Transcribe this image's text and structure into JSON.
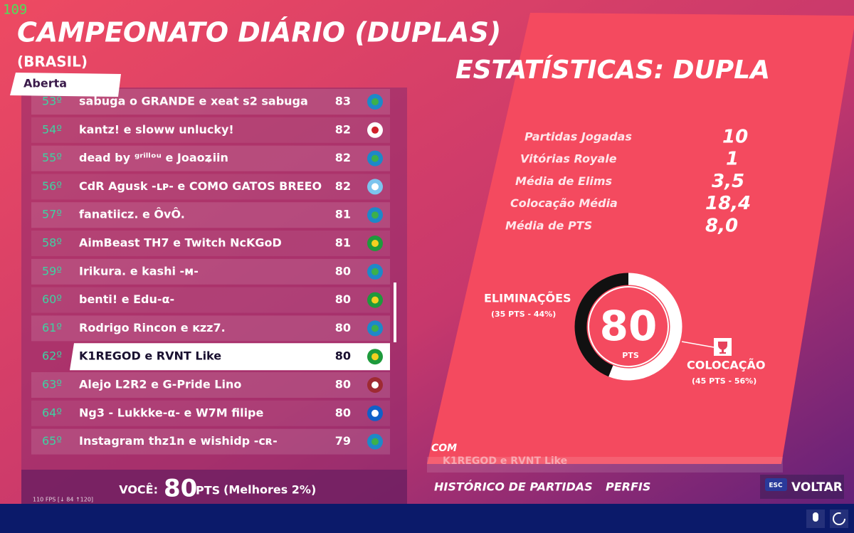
{
  "fps_counter": "109",
  "header": {
    "title": "CAMPEONATO DIÁRIO (DUPLAS)",
    "subtitle": "(BRASIL)",
    "tag": "Aberta"
  },
  "leaderboard": {
    "rows": [
      {
        "rank": "53º",
        "name": "sabuga o GRANDE e xeat s2 sabuga",
        "points": 83
      },
      {
        "rank": "54º",
        "name": "kantz! e sloww unlucky!",
        "points": 82
      },
      {
        "rank": "55º",
        "name": "dead by ᵍʳⁱˡˡᵒᵘ e Joaoʑiin",
        "points": 82
      },
      {
        "rank": "56º",
        "name": "CdR Agusk -ʟᴘ- e COMO GATOS BREEO",
        "points": 82
      },
      {
        "rank": "57º",
        "name": "fanatiicz. e ÔvÔ.",
        "points": 81
      },
      {
        "rank": "58º",
        "name": "AimBeast TH7 e Twitch NcKGoD",
        "points": 81
      },
      {
        "rank": "59º",
        "name": "Irikura. e kashi -ᴍ-",
        "points": 80
      },
      {
        "rank": "60º",
        "name": "benti! e Edu-α-",
        "points": 80
      },
      {
        "rank": "61º",
        "name": "Rodrigo Rincon e ᴋzz7.",
        "points": 80
      },
      {
        "rank": "62º",
        "name": "K1REGOD e RVNT Like",
        "points": 80
      },
      {
        "rank": "63º",
        "name": "Alejo L2R2 e G-Pride Lino",
        "points": 80
      },
      {
        "rank": "64º",
        "name": "Ng3 - Lukkke-α- e W7M filipe",
        "points": 80
      },
      {
        "rank": "65º",
        "name": "Instagram thz1n e wishidp -ᴄʀ-",
        "points": 79
      }
    ],
    "you_label": "VOCÊ:",
    "you_points": 80,
    "you_unit": "PTS",
    "you_rank_note": "(Melhores 2%)",
    "perf": "110 FPS [↓ 84 ↑120]"
  },
  "stats": {
    "title": "ESTATÍSTICAS: DUPLA",
    "rows": [
      {
        "label": "Partidas Jogadas",
        "value": "10"
      },
      {
        "label": "Vitórias Royale",
        "value": "1"
      },
      {
        "label": "Média de Elims",
        "value": "3,5"
      },
      {
        "label": "Colocação Média",
        "value": "18,4"
      },
      {
        "label": "Média de PTS",
        "value": "8,0"
      }
    ],
    "donut": {
      "total": "80",
      "unit": "PTS",
      "segments": [
        {
          "name": "ELIMINAÇÕES",
          "percent": 44,
          "label": "(35 PTS - 44%)",
          "color": "#111111"
        },
        {
          "name": "COLOCAÇÃO",
          "percent": 56,
          "label": "(45 PTS - 56%)",
          "color": "#ffffff"
        }
      ]
    }
  },
  "footer": {
    "with": "COM",
    "team": "K1REGOD e RVNT Like",
    "tabs": [
      "HISTÓRICO DE PARTIDAS",
      "PERFIS"
    ],
    "esc": "ESC",
    "back": "VOLTAR"
  }
}
